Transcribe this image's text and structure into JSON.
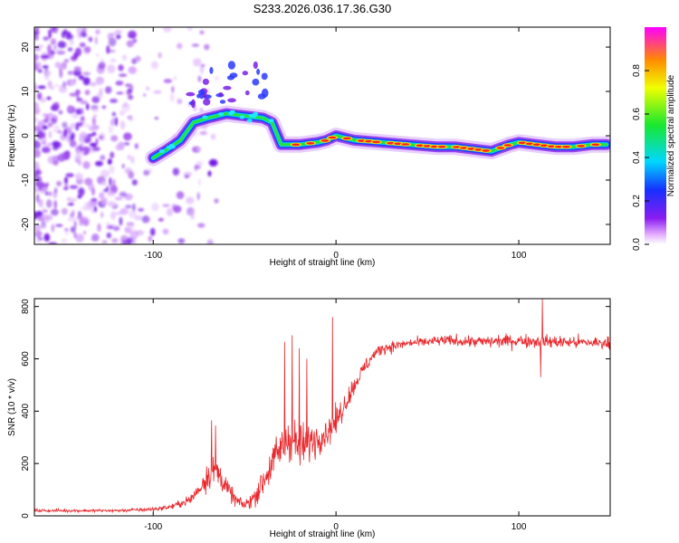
{
  "title": "S233.2026.036.17.36.G30",
  "chart_data": [
    {
      "type": "heatmap",
      "panel": "spectrogram",
      "xlabel": "Height of straight line (km)",
      "ylabel": "Frequency (Hz)",
      "xlim": [
        -165,
        150
      ],
      "ylim": [
        -24.5,
        24.5
      ],
      "xticks": [
        -100,
        0,
        100
      ],
      "xtick_labels": [
        "-100",
        "0",
        "100"
      ],
      "yticks": [
        -20,
        -10,
        0,
        10,
        20
      ],
      "ytick_labels": [
        "-20",
        "-10",
        "0",
        "10",
        "20"
      ],
      "colorbar": {
        "label": "Normalized spectral amplitude",
        "range": [
          0,
          1
        ],
        "ticks": [
          0.0,
          0.2,
          0.4,
          0.6,
          0.8
        ],
        "tick_labels": [
          "0.0",
          "0.2",
          "0.4",
          "0.6",
          "0.8"
        ],
        "colormap": "rainbow"
      },
      "track": {
        "x": [
          -100,
          -92,
          -85,
          -78,
          -70,
          -60,
          -50,
          -40,
          -35,
          -30,
          -20,
          -10,
          -5,
          0,
          10,
          25,
          40,
          55,
          65,
          75,
          85,
          95,
          100,
          110,
          120,
          130,
          140,
          148
        ],
        "y": [
          -5,
          -3,
          -1,
          3,
          4,
          5,
          4.5,
          4,
          3,
          -2,
          -2,
          -1.5,
          -1,
          0,
          -1,
          -1.5,
          -2,
          -2.5,
          -2.5,
          -3,
          -3.5,
          -2,
          -1.5,
          -2,
          -2.5,
          -2.5,
          -2,
          -2
        ]
      },
      "noise_region_x": [
        -165,
        -90
      ]
    },
    {
      "type": "line",
      "panel": "snr",
      "xlabel": "Height of straight line (km)",
      "ylabel": "SNR (10 * v/v)",
      "xlim": [
        -165,
        150
      ],
      "ylim": [
        0,
        830
      ],
      "xticks": [
        -100,
        0,
        100
      ],
      "xtick_labels": [
        "-100",
        "0",
        "100"
      ],
      "yticks": [
        0,
        200,
        400,
        600,
        800
      ],
      "ytick_labels": [
        "0",
        "200",
        "400",
        "600",
        "800"
      ],
      "color": "#e8262b",
      "trend_x": [
        -165,
        -120,
        -100,
        -90,
        -80,
        -75,
        -70,
        -65,
        -60,
        -55,
        -50,
        -45,
        -40,
        -35,
        -30,
        -25,
        -20,
        -15,
        -10,
        -5,
        0,
        5,
        10,
        15,
        20,
        25,
        40,
        60,
        80,
        100,
        120,
        150
      ],
      "trend_y": [
        20,
        20,
        25,
        35,
        60,
        100,
        160,
        170,
        110,
        60,
        40,
        70,
        130,
        200,
        260,
        300,
        260,
        280,
        300,
        320,
        360,
        430,
        500,
        560,
        610,
        640,
        660,
        670,
        665,
        670,
        665,
        660
      ],
      "noise_x": [
        -165,
        -120,
        -90,
        -75,
        -70,
        -65,
        -60,
        -50,
        -40,
        -30,
        -20,
        -10,
        0,
        10,
        20,
        40,
        100,
        150
      ],
      "noise_amp": [
        10,
        10,
        15,
        50,
        110,
        90,
        60,
        30,
        100,
        140,
        150,
        110,
        90,
        60,
        45,
        30,
        45,
        40
      ],
      "spikes": [
        {
          "x": -68,
          "y": 365
        },
        {
          "x": -66,
          "y": 345
        },
        {
          "x": -28,
          "y": 665
        },
        {
          "x": -24,
          "y": 690
        },
        {
          "x": -20,
          "y": 640
        },
        {
          "x": -16,
          "y": 600
        },
        {
          "x": -2,
          "y": 760
        },
        {
          "x": 113,
          "y": 830
        },
        {
          "x": 112,
          "y": 530
        }
      ],
      "grid": false,
      "legend": "none"
    }
  ]
}
